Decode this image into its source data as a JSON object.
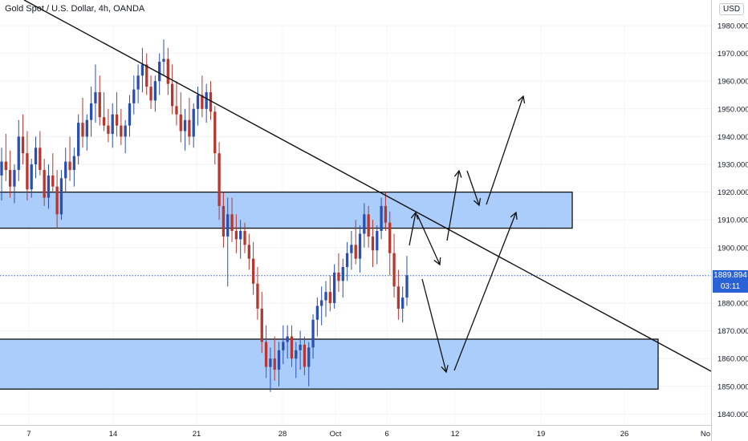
{
  "header": {
    "title": "Gold Spot / U.S. Dollar, 4h, OANDA",
    "currency": "USD"
  },
  "last_price": {
    "value": "1889.894",
    "countdown": "03:11"
  },
  "colors": {
    "up": "#2a4fb0",
    "down": "#b5372f",
    "zone_fill": "#aacdfc",
    "zone_stroke": "#111111",
    "trendline": "#111111",
    "price_line": "#2a62d6"
  },
  "chart_data": {
    "type": "candlestick",
    "title": "Gold Spot / U.S. Dollar, 4h, OANDA",
    "y_ticks": [
      "1980.000",
      "1970.000",
      "1960.000",
      "1950.000",
      "1940.000",
      "1930.000",
      "1920.000",
      "1910.000",
      "1900.000",
      "1880.000",
      "1870.000",
      "1860.000",
      "1850.000",
      "1840.000"
    ],
    "y_tick_values": [
      1980,
      1970,
      1960,
      1950,
      1940,
      1930,
      1920,
      1910,
      1900,
      1880,
      1870,
      1860,
      1850,
      1840
    ],
    "x_ticks": [
      "7",
      "14",
      "21",
      "28",
      "Oct",
      "6",
      "12",
      "19",
      "26",
      "No"
    ],
    "ylim": [
      1836.5,
      1990
    ],
    "zones": [
      {
        "name": "resistance-zone",
        "low": 1907,
        "high": 1920
      },
      {
        "name": "support-zone",
        "low": 1849,
        "high": 1867
      }
    ],
    "trendline": {
      "from": "upper-left",
      "to": "lower-right",
      "note": "descending"
    },
    "ohlc": [
      [
        1926,
        1936,
        1917,
        1931
      ],
      [
        1931,
        1941,
        1924,
        1928
      ],
      [
        1928,
        1935,
        1918,
        1922
      ],
      [
        1922,
        1930,
        1916,
        1928
      ],
      [
        1928,
        1946,
        1924,
        1940
      ],
      [
        1940,
        1948,
        1930,
        1934
      ],
      [
        1934,
        1942,
        1917,
        1921
      ],
      [
        1921,
        1932,
        1918,
        1930
      ],
      [
        1930,
        1940,
        1925,
        1936
      ],
      [
        1936,
        1942,
        1926,
        1928
      ],
      [
        1928,
        1932,
        1915,
        1918
      ],
      [
        1918,
        1930,
        1914,
        1926
      ],
      [
        1926,
        1934,
        1920,
        1922
      ],
      [
        1922,
        1928,
        1907,
        1912
      ],
      [
        1912,
        1928,
        1910,
        1925
      ],
      [
        1925,
        1936,
        1920,
        1931
      ],
      [
        1931,
        1940,
        1924,
        1928
      ],
      [
        1928,
        1936,
        1922,
        1933
      ],
      [
        1933,
        1948,
        1930,
        1945
      ],
      [
        1945,
        1954,
        1936,
        1940
      ],
      [
        1940,
        1948,
        1935,
        1946
      ],
      [
        1946,
        1958,
        1940,
        1952
      ],
      [
        1952,
        1966,
        1945,
        1956
      ],
      [
        1956,
        1962,
        1944,
        1947
      ],
      [
        1947,
        1956,
        1942,
        1944
      ],
      [
        1944,
        1950,
        1938,
        1941
      ],
      [
        1941,
        1952,
        1936,
        1948
      ],
      [
        1948,
        1956,
        1940,
        1944
      ],
      [
        1944,
        1950,
        1937,
        1940
      ],
      [
        1940,
        1946,
        1934,
        1944
      ],
      [
        1944,
        1955,
        1940,
        1952
      ],
      [
        1952,
        1962,
        1948,
        1957
      ],
      [
        1957,
        1966,
        1952,
        1962
      ],
      [
        1962,
        1972,
        1956,
        1966
      ],
      [
        1966,
        1970,
        1955,
        1958
      ],
      [
        1958,
        1962,
        1950,
        1953
      ],
      [
        1953,
        1962,
        1949,
        1960
      ],
      [
        1960,
        1970,
        1955,
        1967
      ],
      [
        1967,
        1975,
        1962,
        1968
      ],
      [
        1968,
        1972,
        1955,
        1959
      ],
      [
        1959,
        1966,
        1948,
        1951
      ],
      [
        1951,
        1960,
        1944,
        1948
      ],
      [
        1948,
        1956,
        1938,
        1942
      ],
      [
        1942,
        1950,
        1935,
        1946
      ],
      [
        1946,
        1954,
        1937,
        1940
      ],
      [
        1940,
        1952,
        1936,
        1950
      ],
      [
        1950,
        1958,
        1944,
        1955
      ],
      [
        1955,
        1962,
        1947,
        1950
      ],
      [
        1950,
        1959,
        1945,
        1956
      ],
      [
        1956,
        1960,
        1946,
        1949
      ],
      [
        1949,
        1951,
        1930,
        1934
      ],
      [
        1934,
        1938,
        1910,
        1915
      ],
      [
        1915,
        1920,
        1900,
        1904
      ],
      [
        1904,
        1918,
        1886,
        1912
      ],
      [
        1912,
        1918,
        1902,
        1906
      ],
      [
        1906,
        1912,
        1898,
        1903
      ],
      [
        1903,
        1910,
        1896,
        1906
      ],
      [
        1906,
        1909,
        1898,
        1901
      ],
      [
        1901,
        1905,
        1892,
        1896
      ],
      [
        1896,
        1902,
        1883,
        1887
      ],
      [
        1887,
        1893,
        1874,
        1878
      ],
      [
        1878,
        1884,
        1862,
        1866
      ],
      [
        1866,
        1872,
        1853,
        1857
      ],
      [
        1857,
        1864,
        1848,
        1860
      ],
      [
        1860,
        1868,
        1852,
        1856
      ],
      [
        1856,
        1866,
        1850,
        1863
      ],
      [
        1863,
        1872,
        1858,
        1866
      ],
      [
        1866,
        1872,
        1860,
        1868
      ],
      [
        1868,
        1872,
        1857,
        1860
      ],
      [
        1860,
        1866,
        1853,
        1863
      ],
      [
        1863,
        1870,
        1856,
        1865
      ],
      [
        1865,
        1868,
        1854,
        1857
      ],
      [
        1857,
        1866,
        1850,
        1864
      ],
      [
        1864,
        1876,
        1860,
        1874
      ],
      [
        1874,
        1882,
        1868,
        1879
      ],
      [
        1879,
        1886,
        1872,
        1881
      ],
      [
        1881,
        1888,
        1875,
        1884
      ],
      [
        1884,
        1890,
        1877,
        1880
      ],
      [
        1880,
        1894,
        1878,
        1891
      ],
      [
        1891,
        1898,
        1884,
        1888
      ],
      [
        1888,
        1896,
        1882,
        1893
      ],
      [
        1893,
        1902,
        1888,
        1898
      ],
      [
        1898,
        1906,
        1892,
        1901
      ],
      [
        1901,
        1910,
        1894,
        1896
      ],
      [
        1896,
        1908,
        1891,
        1905
      ],
      [
        1905,
        1916,
        1900,
        1912
      ],
      [
        1912,
        1915,
        1900,
        1904
      ],
      [
        1904,
        1910,
        1893,
        1899
      ],
      [
        1899,
        1908,
        1894,
        1906
      ],
      [
        1906,
        1918,
        1903,
        1915
      ],
      [
        1915,
        1920,
        1906,
        1909
      ],
      [
        1909,
        1913,
        1890,
        1898
      ],
      [
        1898,
        1905,
        1882,
        1886
      ],
      [
        1886,
        1892,
        1874,
        1878
      ],
      [
        1878,
        1886,
        1873,
        1882
      ],
      [
        1882,
        1897,
        1879,
        1890
      ]
    ]
  }
}
